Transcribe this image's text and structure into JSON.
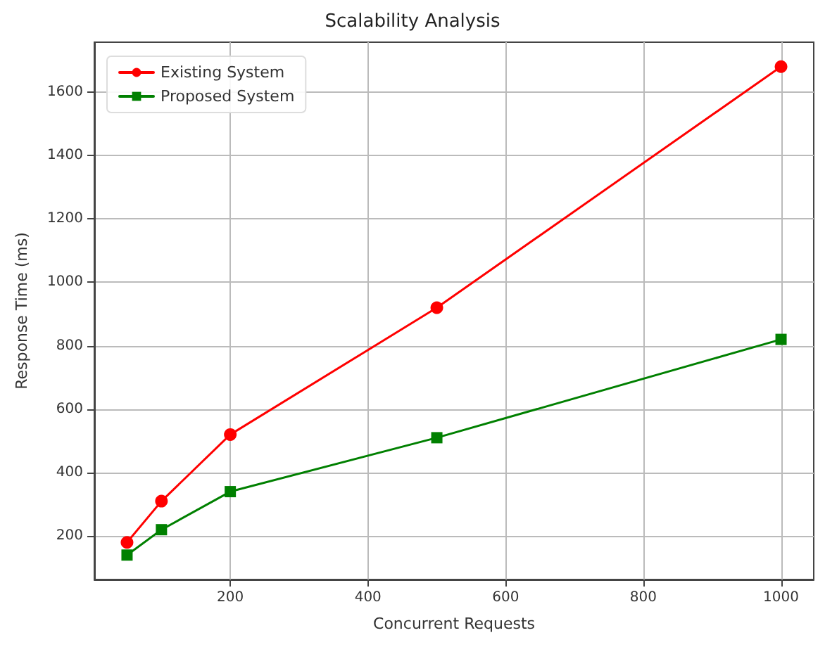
{
  "chart_data": {
    "type": "line",
    "title": "Scalability Analysis",
    "xlabel": "Concurrent Requests",
    "ylabel": "Response Time (ms)",
    "x": [
      50,
      100,
      200,
      500,
      1000
    ],
    "series": [
      {
        "name": "Existing System",
        "color": "#ff0000",
        "marker": "circle",
        "values": [
          180,
          310,
          520,
          920,
          1680
        ]
      },
      {
        "name": "Proposed System",
        "color": "#008000",
        "marker": "square",
        "values": [
          140,
          220,
          340,
          510,
          820
        ]
      }
    ],
    "xlim": [
      2.5,
      1047.5
    ],
    "xticks": [
      200,
      400,
      600,
      800,
      1000
    ],
    "ylim": [
      63,
      1757
    ],
    "yticks": [
      200,
      400,
      600,
      800,
      1000,
      1200,
      1400,
      1600
    ],
    "grid": true,
    "legend": "top left",
    "line_style": "solid"
  }
}
